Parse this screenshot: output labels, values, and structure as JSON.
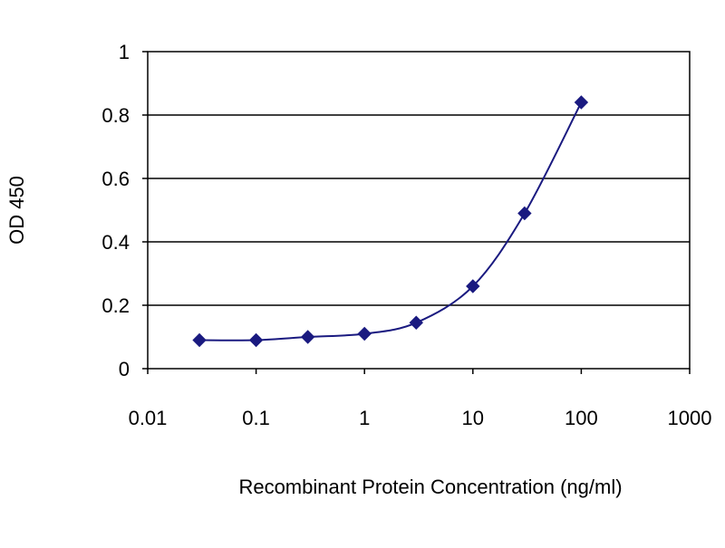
{
  "chart_data": {
    "type": "line",
    "xlabel": "Recombinant Protein Concentration (ng/ml)",
    "ylabel": "OD 450",
    "x_scale": "log",
    "xlim": [
      0.01,
      1000
    ],
    "ylim": [
      0,
      1
    ],
    "x_ticks": [
      0.01,
      0.1,
      1,
      10,
      100,
      1000
    ],
    "x_tick_labels": [
      "0.01",
      "0.1",
      "1",
      "10",
      "100",
      "1000"
    ],
    "y_ticks": [
      0,
      0.2,
      0.4,
      0.6,
      0.8,
      1
    ],
    "y_tick_labels": [
      "0",
      "0.2",
      "0.4",
      "0.6",
      "0.8",
      "1"
    ],
    "grid": "horizontal",
    "legend": "none",
    "series": [
      {
        "x": [
          0.03,
          0.1,
          0.3,
          1,
          3,
          10,
          30,
          100
        ],
        "y": [
          0.09,
          0.09,
          0.1,
          0.11,
          0.145,
          0.26,
          0.49,
          0.84
        ],
        "color": "#1a1a80",
        "marker": "diamond",
        "curve": "smoothed"
      }
    ],
    "colors": {
      "line": "#1a1a80",
      "marker": "#1a1a80",
      "gridline": "#000000",
      "axis": "#000000",
      "plot_background": "#ffffff"
    }
  }
}
